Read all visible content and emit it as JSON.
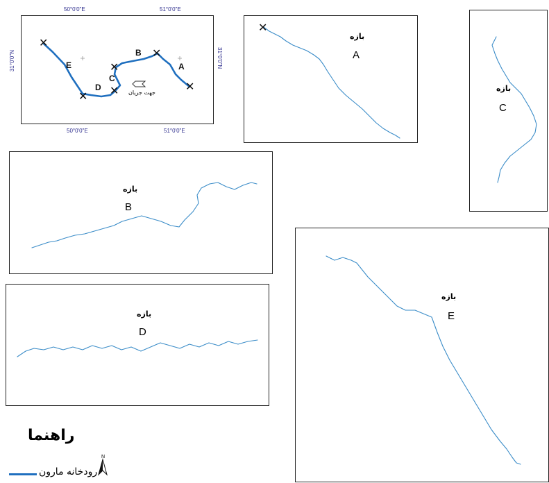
{
  "overview": {
    "coords": {
      "lon_top_1": "50°0'0\"E",
      "lon_top_2": "51°0'0\"E",
      "lon_bottom_1": "50°0'0\"E",
      "lon_bottom_2": "51°0'0\"E",
      "lat_left": "31°0'0\"N",
      "lat_right": "31°0'0\"N"
    },
    "segment_labels": [
      "E",
      "D",
      "C",
      "B",
      "A"
    ],
    "flow_direction_label": "جهت جریان"
  },
  "panels": {
    "A": {
      "word": "بازه",
      "letter": "A"
    },
    "B": {
      "word": "بازه",
      "letter": "B"
    },
    "C": {
      "word": "بازه",
      "letter": "C"
    },
    "D": {
      "word": "بازه",
      "letter": "D"
    },
    "E": {
      "word": "بازه",
      "letter": "E"
    }
  },
  "legend": {
    "title": "راهنما",
    "river_label": "رودخانه مارون",
    "river_color": "#1f6fbf",
    "north_label": "N"
  }
}
